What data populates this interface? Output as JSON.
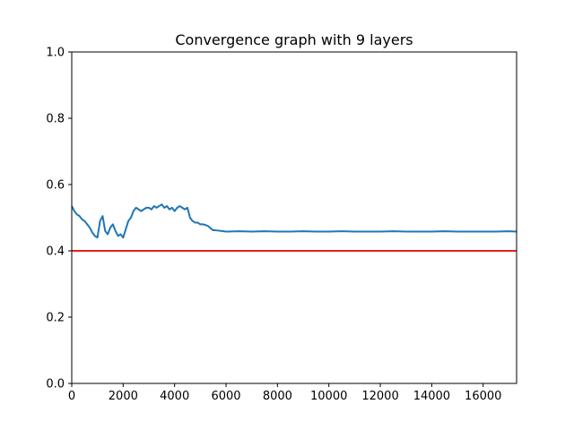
{
  "chart_data": {
    "type": "line",
    "title": "Convergence graph with 9 layers",
    "xlabel": "",
    "ylabel": "",
    "xlim": [
      0,
      17300
    ],
    "ylim": [
      0.0,
      1.0
    ],
    "x_ticks": [
      0,
      2000,
      4000,
      6000,
      8000,
      10000,
      12000,
      14000,
      16000
    ],
    "x_tick_labels": [
      "0",
      "2000",
      "4000",
      "6000",
      "8000",
      "10000",
      "12000",
      "14000",
      "16000"
    ],
    "y_ticks": [
      0.0,
      0.2,
      0.4,
      0.6,
      0.8,
      1.0
    ],
    "y_tick_labels": [
      "0.0",
      "0.2",
      "0.4",
      "0.6",
      "0.8",
      "1.0"
    ],
    "grid": false,
    "series": [
      {
        "color": "#1f77b4",
        "x": [
          0,
          100,
          200,
          300,
          400,
          500,
          600,
          700,
          800,
          900,
          1000,
          1100,
          1200,
          1300,
          1400,
          1500,
          1600,
          1700,
          1800,
          1900,
          2000,
          2100,
          2200,
          2300,
          2400,
          2500,
          2600,
          2700,
          2800,
          2900,
          3000,
          3100,
          3200,
          3300,
          3400,
          3500,
          3600,
          3700,
          3800,
          3900,
          4000,
          4100,
          4200,
          4300,
          4400,
          4500,
          4600,
          4700,
          4800,
          4900,
          5000,
          5100,
          5200,
          5300,
          5400,
          5500,
          5600,
          5700,
          5800,
          5900,
          6000,
          6500,
          7000,
          7500,
          8000,
          8500,
          9000,
          9500,
          10000,
          10500,
          11000,
          11500,
          12000,
          12500,
          13000,
          13500,
          14000,
          14500,
          15000,
          15500,
          16000,
          16500,
          17000,
          17300
        ],
        "y": [
          0.535,
          0.52,
          0.51,
          0.505,
          0.495,
          0.49,
          0.48,
          0.47,
          0.455,
          0.445,
          0.44,
          0.49,
          0.505,
          0.46,
          0.45,
          0.47,
          0.48,
          0.46,
          0.445,
          0.45,
          0.44,
          0.465,
          0.49,
          0.5,
          0.52,
          0.53,
          0.525,
          0.52,
          0.525,
          0.53,
          0.53,
          0.525,
          0.535,
          0.53,
          0.535,
          0.54,
          0.53,
          0.535,
          0.525,
          0.53,
          0.52,
          0.53,
          0.535,
          0.53,
          0.525,
          0.53,
          0.5,
          0.49,
          0.485,
          0.485,
          0.48,
          0.48,
          0.478,
          0.475,
          0.468,
          0.462,
          0.462,
          0.461,
          0.46,
          0.459,
          0.458,
          0.459,
          0.458,
          0.459,
          0.458,
          0.458,
          0.459,
          0.458,
          0.458,
          0.459,
          0.458,
          0.458,
          0.458,
          0.459,
          0.458,
          0.458,
          0.458,
          0.459,
          0.458,
          0.458,
          0.458,
          0.458,
          0.459,
          0.458
        ]
      },
      {
        "color": "#e00000",
        "x": [
          0,
          17300
        ],
        "y": [
          0.4,
          0.4
        ]
      }
    ]
  }
}
